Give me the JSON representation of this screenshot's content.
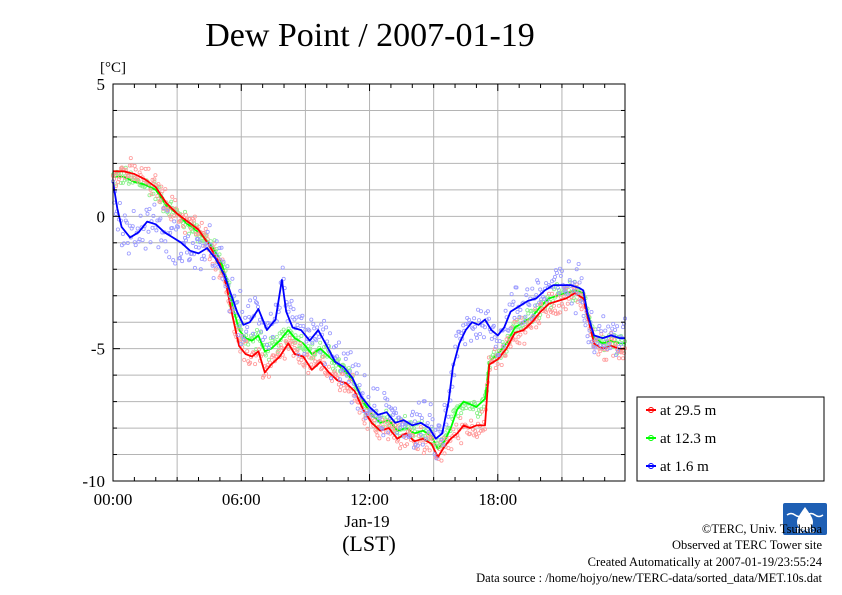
{
  "chart_data": {
    "type": "line",
    "title": "Dew Point / 2007-01-19",
    "ylabel": "[°C]",
    "xlabel": "(LST)",
    "date_label": "Jan-19",
    "ylim": [
      -10,
      5
    ],
    "xlim": [
      0,
      23.95
    ],
    "y_ticks": [
      5,
      0,
      -5,
      -10
    ],
    "x_ticks": [
      {
        "hour": 0,
        "label": "00:00"
      },
      {
        "hour": 6,
        "label": "06:00"
      },
      {
        "hour": 12,
        "label": "12:00"
      },
      {
        "hour": 18,
        "label": "18:00"
      }
    ],
    "grid": true,
    "legend_position": "right",
    "series": [
      {
        "name": "at 29.5 m",
        "color": "#ff0000",
        "points": [
          [
            0.0,
            1.7
          ],
          [
            0.5,
            1.7
          ],
          [
            1.0,
            1.6
          ],
          [
            1.5,
            1.4
          ],
          [
            2.0,
            1.1
          ],
          [
            2.5,
            0.5
          ],
          [
            3.0,
            0.1
          ],
          [
            3.5,
            -0.2
          ],
          [
            4.0,
            -0.5
          ],
          [
            4.5,
            -1.1
          ],
          [
            5.0,
            -1.8
          ],
          [
            5.3,
            -2.6
          ],
          [
            5.6,
            -3.8
          ],
          [
            5.9,
            -4.9
          ],
          [
            6.2,
            -5.2
          ],
          [
            6.5,
            -5.3
          ],
          [
            6.8,
            -5.1
          ],
          [
            7.1,
            -5.9
          ],
          [
            7.4,
            -5.6
          ],
          [
            7.8,
            -5.3
          ],
          [
            8.2,
            -4.8
          ],
          [
            8.5,
            -5.2
          ],
          [
            8.9,
            -5.3
          ],
          [
            9.3,
            -5.8
          ],
          [
            9.7,
            -5.5
          ],
          [
            10.1,
            -5.9
          ],
          [
            10.5,
            -6.2
          ],
          [
            10.9,
            -6.3
          ],
          [
            11.3,
            -6.6
          ],
          [
            11.7,
            -7.3
          ],
          [
            12.1,
            -7.8
          ],
          [
            12.5,
            -8.1
          ],
          [
            12.9,
            -8.0
          ],
          [
            13.3,
            -8.4
          ],
          [
            13.7,
            -8.2
          ],
          [
            14.1,
            -8.5
          ],
          [
            14.5,
            -8.4
          ],
          [
            14.9,
            -8.6
          ],
          [
            15.2,
            -9.1
          ],
          [
            15.5,
            -8.7
          ],
          [
            15.8,
            -8.4
          ],
          [
            16.1,
            -8.2
          ],
          [
            16.4,
            -7.9
          ],
          [
            16.7,
            -8.0
          ],
          [
            17.0,
            -7.9
          ],
          [
            17.4,
            -7.9
          ],
          [
            17.6,
            -5.6
          ],
          [
            18.0,
            -5.4
          ],
          [
            18.4,
            -5.0
          ],
          [
            18.8,
            -4.4
          ],
          [
            19.2,
            -4.3
          ],
          [
            19.6,
            -4.0
          ],
          [
            20.0,
            -3.6
          ],
          [
            20.4,
            -3.3
          ],
          [
            20.8,
            -3.2
          ],
          [
            21.2,
            -3.1
          ],
          [
            21.6,
            -2.9
          ],
          [
            22.0,
            -3.1
          ],
          [
            22.2,
            -3.8
          ],
          [
            22.5,
            -4.8
          ],
          [
            22.9,
            -5.0
          ],
          [
            23.3,
            -4.9
          ],
          [
            23.7,
            -5.0
          ],
          [
            23.95,
            -5.0
          ]
        ]
      },
      {
        "name": "at 12.3 m",
        "color": "#00ff00",
        "points": [
          [
            0.0,
            1.5
          ],
          [
            0.5,
            1.5
          ],
          [
            1.0,
            1.3
          ],
          [
            1.5,
            1.2
          ],
          [
            2.0,
            1.0
          ],
          [
            2.5,
            0.4
          ],
          [
            3.0,
            0.1
          ],
          [
            3.5,
            -0.3
          ],
          [
            4.0,
            -0.6
          ],
          [
            4.5,
            -1.0
          ],
          [
            5.0,
            -1.6
          ],
          [
            5.3,
            -2.3
          ],
          [
            5.6,
            -3.4
          ],
          [
            5.9,
            -4.3
          ],
          [
            6.2,
            -4.6
          ],
          [
            6.5,
            -4.7
          ],
          [
            6.8,
            -4.5
          ],
          [
            7.1,
            -5.1
          ],
          [
            7.4,
            -5.0
          ],
          [
            7.8,
            -4.7
          ],
          [
            8.2,
            -4.3
          ],
          [
            8.5,
            -4.6
          ],
          [
            8.9,
            -4.8
          ],
          [
            9.3,
            -5.2
          ],
          [
            9.7,
            -5.0
          ],
          [
            10.1,
            -5.3
          ],
          [
            10.5,
            -5.6
          ],
          [
            10.9,
            -5.9
          ],
          [
            11.3,
            -6.3
          ],
          [
            11.7,
            -7.0
          ],
          [
            12.1,
            -7.5
          ],
          [
            12.5,
            -7.8
          ],
          [
            12.9,
            -7.7
          ],
          [
            13.3,
            -8.1
          ],
          [
            13.7,
            -8.0
          ],
          [
            14.1,
            -8.2
          ],
          [
            14.5,
            -8.1
          ],
          [
            14.9,
            -8.3
          ],
          [
            15.2,
            -8.8
          ],
          [
            15.5,
            -8.5
          ],
          [
            15.8,
            -8.0
          ],
          [
            16.1,
            -7.3
          ],
          [
            16.4,
            -7.0
          ],
          [
            16.7,
            -7.1
          ],
          [
            17.0,
            -7.2
          ],
          [
            17.4,
            -6.9
          ],
          [
            17.6,
            -5.5
          ],
          [
            18.0,
            -5.2
          ],
          [
            18.4,
            -4.8
          ],
          [
            18.8,
            -4.2
          ],
          [
            19.2,
            -4.0
          ],
          [
            19.6,
            -3.8
          ],
          [
            20.0,
            -3.4
          ],
          [
            20.4,
            -3.1
          ],
          [
            20.8,
            -3.0
          ],
          [
            21.2,
            -2.9
          ],
          [
            21.6,
            -2.8
          ],
          [
            22.0,
            -2.9
          ],
          [
            22.2,
            -3.6
          ],
          [
            22.5,
            -4.6
          ],
          [
            22.9,
            -4.8
          ],
          [
            23.3,
            -4.7
          ],
          [
            23.7,
            -4.8
          ],
          [
            23.95,
            -4.8
          ]
        ]
      },
      {
        "name": "at 1.6 m",
        "color": "#0000ff",
        "points": [
          [
            0.0,
            1.3
          ],
          [
            0.2,
            0.3
          ],
          [
            0.4,
            -0.4
          ],
          [
            0.8,
            -0.8
          ],
          [
            1.2,
            -0.6
          ],
          [
            1.6,
            -0.2
          ],
          [
            2.0,
            -0.3
          ],
          [
            2.4,
            -0.6
          ],
          [
            2.8,
            -0.8
          ],
          [
            3.2,
            -1.0
          ],
          [
            3.6,
            -1.3
          ],
          [
            4.0,
            -1.4
          ],
          [
            4.4,
            -1.2
          ],
          [
            4.8,
            -1.6
          ],
          [
            5.2,
            -2.2
          ],
          [
            5.5,
            -2.9
          ],
          [
            5.8,
            -3.6
          ],
          [
            6.1,
            -4.1
          ],
          [
            6.4,
            -4.0
          ],
          [
            6.8,
            -3.5
          ],
          [
            7.2,
            -4.3
          ],
          [
            7.6,
            -3.9
          ],
          [
            7.9,
            -2.4
          ],
          [
            8.1,
            -3.6
          ],
          [
            8.4,
            -4.2
          ],
          [
            8.8,
            -4.3
          ],
          [
            9.2,
            -4.7
          ],
          [
            9.6,
            -4.3
          ],
          [
            10.0,
            -4.9
          ],
          [
            10.4,
            -5.5
          ],
          [
            10.8,
            -5.7
          ],
          [
            11.2,
            -6.1
          ],
          [
            11.6,
            -6.8
          ],
          [
            12.0,
            -7.2
          ],
          [
            12.4,
            -7.5
          ],
          [
            12.8,
            -7.4
          ],
          [
            13.2,
            -7.8
          ],
          [
            13.6,
            -7.7
          ],
          [
            14.0,
            -7.9
          ],
          [
            14.4,
            -7.8
          ],
          [
            14.8,
            -8.0
          ],
          [
            15.1,
            -8.4
          ],
          [
            15.4,
            -8.2
          ],
          [
            15.7,
            -7.0
          ],
          [
            15.9,
            -5.7
          ],
          [
            16.2,
            -4.8
          ],
          [
            16.5,
            -4.3
          ],
          [
            16.8,
            -4.0
          ],
          [
            17.1,
            -4.1
          ],
          [
            17.4,
            -3.9
          ],
          [
            17.7,
            -4.3
          ],
          [
            18.0,
            -4.5
          ],
          [
            18.3,
            -4.2
          ],
          [
            18.6,
            -3.6
          ],
          [
            19.0,
            -3.4
          ],
          [
            19.4,
            -3.2
          ],
          [
            19.8,
            -3.1
          ],
          [
            20.2,
            -2.8
          ],
          [
            20.6,
            -2.6
          ],
          [
            21.0,
            -2.6
          ],
          [
            21.4,
            -2.6
          ],
          [
            21.8,
            -2.7
          ],
          [
            22.0,
            -2.8
          ],
          [
            22.2,
            -3.7
          ],
          [
            22.5,
            -4.5
          ],
          [
            22.9,
            -4.6
          ],
          [
            23.3,
            -4.5
          ],
          [
            23.7,
            -4.6
          ],
          [
            23.95,
            -4.6
          ]
        ]
      }
    ]
  },
  "footer": {
    "copyright": "©TERC, Univ. Tsukuba",
    "observed": "Observed at TERC Tower site",
    "created": "Created Automatically at 2007-01-19/23:55:24",
    "source": "Data source : /home/hojyo/new/TERC-data/sorted_data/MET.10s.dat"
  },
  "logo": {
    "text": "TERC",
    "color": "#1e5fb4"
  }
}
